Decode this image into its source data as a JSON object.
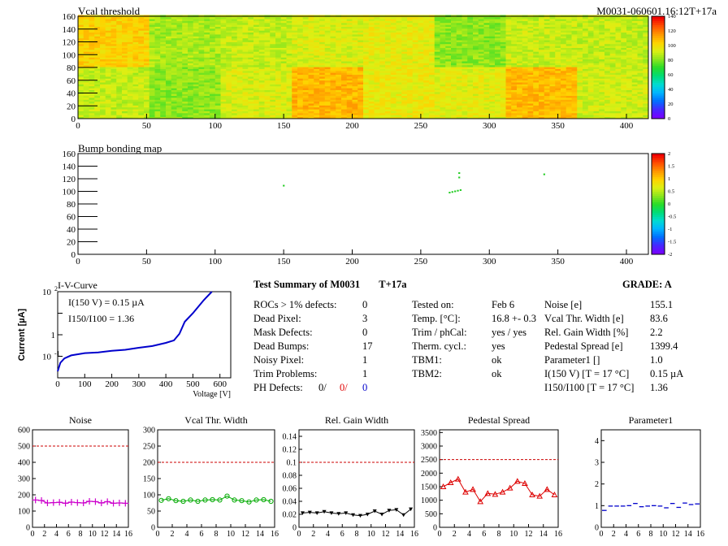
{
  "header": {
    "vcal_title": "Vcal threshold",
    "module_id": "M0031-060601.16:12T+17a",
    "bump_title": "Bump bonding map"
  },
  "colors": {
    "frame": "#000000",
    "limit_line": "#cc0000",
    "noise": "#cc00cc",
    "vcal_width": "#00aa00",
    "gain_width": "#000000",
    "pedestal": "#dd0000",
    "parameter1": "#0000cc",
    "iv_curve": "#0000cc"
  },
  "summary": {
    "title": "Test Summary of M0031",
    "tag": "T+17a",
    "grade": "GRADE:  A",
    "left": [
      {
        "label": "ROCs > 1% defects:",
        "value": "0"
      },
      {
        "label": "Dead Pixel:",
        "value": "3"
      },
      {
        "label": "Mask Defects:",
        "value": "0"
      },
      {
        "label": "Dead Bumps:",
        "value": "17"
      },
      {
        "label": "Noisy Pixel:",
        "value": "1"
      },
      {
        "label": "Trim Problems:",
        "value": "1"
      }
    ],
    "ph_defects": {
      "label": "PH Defects:",
      "v1": "0/",
      "v2": "0/",
      "v3": "0"
    },
    "middle": [
      {
        "label": "Tested on:",
        "value": "Feb 6"
      },
      {
        "label": "Temp. [°C]:",
        "value": "16.8 +- 0.3"
      },
      {
        "label": "Trim / phCal:",
        "value": "yes / yes"
      },
      {
        "label": "Therm. cycl.:",
        "value": "yes"
      },
      {
        "label": "TBM1:",
        "value": "ok"
      },
      {
        "label": "TBM2:",
        "value": "ok"
      }
    ],
    "right": [
      {
        "label": "Noise [e]",
        "value": "155.1"
      },
      {
        "label": "Vcal Thr. Width [e]",
        "value": "83.6"
      },
      {
        "label": "Rel. Gain Width [%]",
        "value": "2.2"
      },
      {
        "label": "Pedestal Spread [e]",
        "value": "1399.4"
      },
      {
        "label": "Parameter1 []",
        "value": "1.0"
      },
      {
        "label": "I(150 V) [T = 17 °C]",
        "value": "0.15 µA"
      },
      {
        "label": "I150/I100  [T = 17 °C]",
        "value": "1.36"
      }
    ]
  },
  "chart_data": [
    {
      "type": "heatmap",
      "title": "Vcal threshold",
      "x_range": [
        0,
        416
      ],
      "y_range": [
        0,
        160
      ],
      "x_ticks": [
        0,
        50,
        100,
        150,
        200,
        250,
        300,
        350,
        400
      ],
      "y_ticks": [
        0,
        20,
        40,
        60,
        80,
        100,
        120,
        140,
        160
      ],
      "z_range": [
        0,
        150
      ],
      "z_ticks": [
        0,
        20,
        40,
        60,
        80,
        100,
        120,
        140
      ],
      "roc_means_top": [
        112,
        92,
        96,
        100,
        103,
        88,
        97,
        96
      ],
      "roc_means_bottom": [
        96,
        88,
        100,
        118,
        104,
        102,
        117,
        98
      ]
    },
    {
      "type": "heatmap",
      "title": "Bump bonding map",
      "x_range": [
        0,
        416
      ],
      "y_range": [
        0,
        160
      ],
      "x_ticks": [
        0,
        50,
        100,
        150,
        200,
        250,
        300,
        350,
        400
      ],
      "y_ticks": [
        0,
        20,
        40,
        60,
        80,
        100,
        120,
        140,
        160
      ],
      "z_range": [
        -2,
        2
      ],
      "z_ticks": [
        "-2",
        "-1.5",
        "-1",
        "-0.5",
        "0",
        "0.5",
        "1",
        "1.5",
        "2"
      ],
      "hits": [
        {
          "x": 150,
          "y": 109
        },
        {
          "x": 271,
          "y": 98
        },
        {
          "x": 273,
          "y": 99
        },
        {
          "x": 275,
          "y": 100
        },
        {
          "x": 277,
          "y": 101
        },
        {
          "x": 279,
          "y": 102
        },
        {
          "x": 278,
          "y": 122
        },
        {
          "x": 278,
          "y": 129
        },
        {
          "x": 340,
          "y": 127
        }
      ]
    },
    {
      "type": "line",
      "title": "I-V-Curve",
      "xlabel": "Voltage [V]",
      "ylabel": "Current [µA]",
      "x_ticks": [
        0,
        100,
        200,
        300,
        400,
        500,
        600
      ],
      "y_log": true,
      "y_ticks": [
        "10",
        "1",
        "10"
      ],
      "y_tick_exp": [
        "-1",
        "",
        "2"
      ],
      "annotation_1": "I(150 V) = 0.15 µA",
      "annotation_2": "I150/I100 =  1.36",
      "x": [
        0,
        10,
        25,
        50,
        100,
        150,
        200,
        250,
        300,
        350,
        400,
        430,
        450,
        470,
        500,
        540,
        570
      ],
      "y": [
        0.02,
        0.05,
        0.08,
        0.11,
        0.14,
        0.15,
        0.18,
        0.2,
        0.25,
        0.3,
        0.42,
        0.55,
        1.1,
        4,
        10,
        40,
        100
      ]
    },
    {
      "type": "line",
      "title": "Noise",
      "x_ticks": [
        0,
        2,
        4,
        6,
        8,
        10,
        12,
        14,
        16
      ],
      "y_ticks": [
        0,
        100,
        200,
        300,
        400,
        500,
        600
      ],
      "ylim": [
        0,
        600
      ],
      "limit": 500,
      "values": [
        168,
        165,
        150,
        152,
        154,
        148,
        155,
        152,
        150,
        160,
        158,
        150,
        158,
        148,
        150,
        148
      ]
    },
    {
      "type": "line",
      "title": "Vcal Thr. Width",
      "x_ticks": [
        0,
        2,
        4,
        6,
        8,
        10,
        12,
        14,
        16
      ],
      "y_ticks": [
        0,
        50,
        100,
        150,
        200,
        250,
        300
      ],
      "ylim": [
        0,
        300
      ],
      "limit": 200,
      "values": [
        83,
        88,
        82,
        80,
        84,
        80,
        84,
        85,
        84,
        96,
        84,
        82,
        78,
        84,
        85,
        80
      ]
    },
    {
      "type": "line",
      "title": "Rel. Gain Width",
      "x_ticks": [
        0,
        2,
        4,
        6,
        8,
        10,
        12,
        14,
        16
      ],
      "y_ticks": [
        0,
        0.02,
        0.04,
        0.06,
        0.08,
        0.1,
        0.12,
        0.14
      ],
      "ylim": [
        0,
        0.15
      ],
      "limit": 0.1,
      "values": [
        0.022,
        0.023,
        0.022,
        0.024,
        0.022,
        0.021,
        0.022,
        0.019,
        0.018,
        0.02,
        0.025,
        0.02,
        0.026,
        0.027,
        0.019,
        0.028
      ]
    },
    {
      "type": "line",
      "title": "Pedestal Spread",
      "x_ticks": [
        0,
        2,
        4,
        6,
        8,
        10,
        12,
        14,
        16
      ],
      "y_ticks": [
        0,
        500,
        1000,
        1500,
        2000,
        2500,
        3000,
        3500
      ],
      "ylim": [
        0,
        3600
      ],
      "limit": 2500,
      "values": [
        1500,
        1650,
        1780,
        1300,
        1400,
        950,
        1250,
        1220,
        1300,
        1450,
        1700,
        1620,
        1200,
        1150,
        1400,
        1200
      ]
    },
    {
      "type": "line",
      "title": "Parameter1",
      "x_ticks": [
        0,
        2,
        4,
        6,
        8,
        10,
        12,
        14,
        16
      ],
      "y_ticks": [
        0,
        1,
        2,
        3,
        4
      ],
      "ylim": [
        0,
        4.5
      ],
      "limit": null,
      "values": [
        0.78,
        0.98,
        0.98,
        0.98,
        1.0,
        1.1,
        0.95,
        0.98,
        1.0,
        0.98,
        0.9,
        1.1,
        0.92,
        1.12,
        1.05,
        1.08
      ]
    }
  ]
}
